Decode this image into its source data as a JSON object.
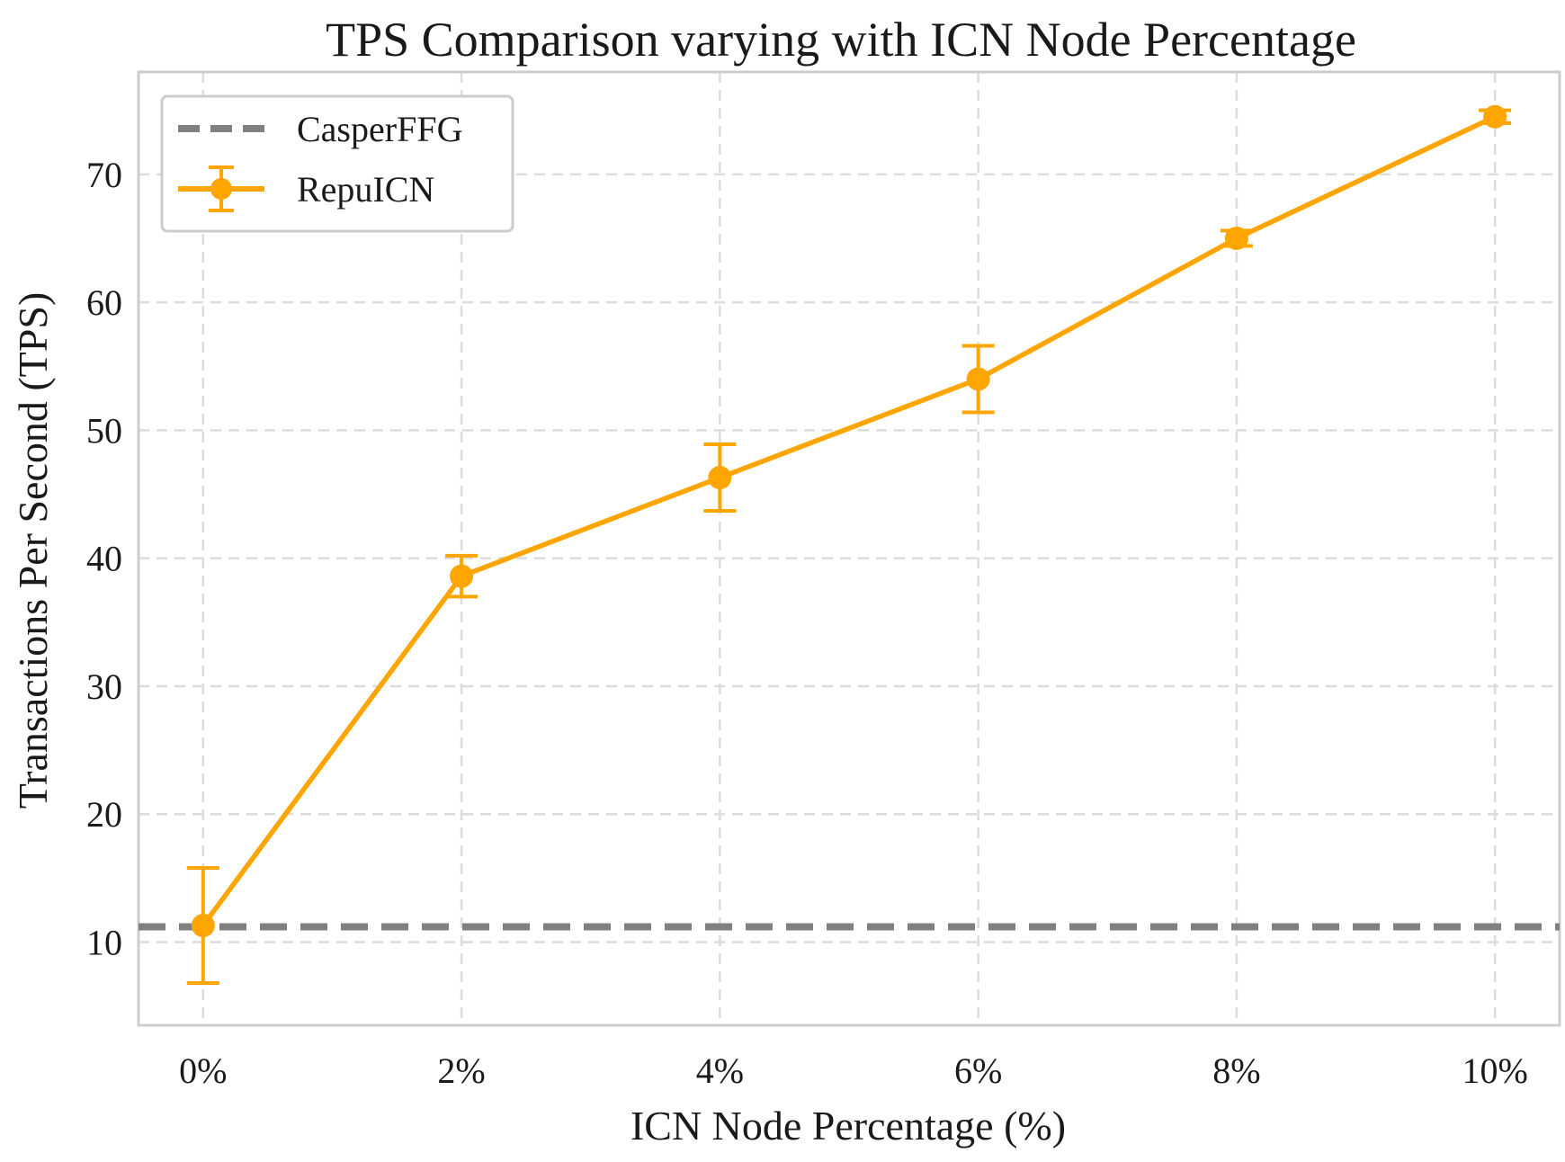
{
  "chart_data": {
    "type": "line",
    "title": "TPS Comparison varying with ICN Node Percentage",
    "xlabel": "ICN Node Percentage (%)",
    "ylabel": "Transactions Per Second (TPS)",
    "categories": [
      "0%",
      "2%",
      "4%",
      "6%",
      "8%",
      "10%"
    ],
    "x": [
      0,
      2,
      4,
      6,
      8,
      10
    ],
    "xlim": [
      -0.5,
      10.5
    ],
    "ylim": [
      3.5,
      78
    ],
    "yticks": [
      10,
      20,
      30,
      40,
      50,
      60,
      70
    ],
    "grid": true,
    "legend_position": "top-left",
    "series": [
      {
        "name": "CasperFFG",
        "style": "dashed-horizontal",
        "value": 11.2,
        "color": "#808080"
      },
      {
        "name": "RepuICN",
        "style": "line-markers-errorbars",
        "values": [
          11.3,
          38.6,
          46.3,
          54.0,
          65.0,
          74.5
        ],
        "errors": [
          4.5,
          1.6,
          2.6,
          2.6,
          0.6,
          0.5
        ],
        "color": "#FFA500"
      }
    ]
  }
}
